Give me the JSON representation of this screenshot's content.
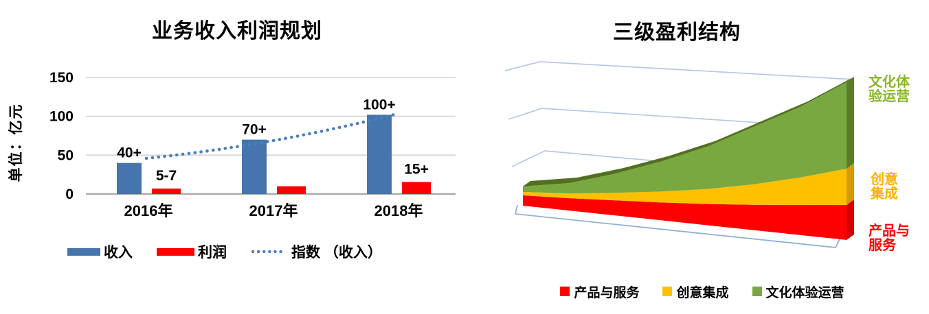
{
  "chart_data": [
    {
      "id": "revenue-profit-plan",
      "type": "bar",
      "title": "业务收入利润规划",
      "ylabel": "单位：亿元",
      "xlabel": "",
      "categories": [
        "2016年",
        "2017年",
        "2018年"
      ],
      "y_ticks": [
        0,
        50,
        100,
        150
      ],
      "ylim": [
        0,
        150
      ],
      "grid": true,
      "legend_position": "bottom",
      "series": [
        {
          "name": "收入",
          "type": "bar",
          "color": "#4674ad",
          "values": [
            40,
            70,
            102
          ],
          "data_labels": [
            "40+",
            "70+",
            "100+"
          ]
        },
        {
          "name": "利润",
          "type": "bar",
          "color": "#fe0000",
          "values": [
            7,
            10,
            15.5
          ],
          "data_labels": [
            "5-7",
            "",
            "15+"
          ]
        },
        {
          "name": "指数 （收入）",
          "type": "trendline",
          "style": "dotted",
          "color": "#4a7ebb",
          "endpoint_values": [
            46,
            103
          ]
        }
      ]
    },
    {
      "id": "three-level-profit-structure",
      "type": "area",
      "subtype": "3d-stacked-area",
      "title": "三级盈利结构",
      "xlabel": "",
      "ylabel": "",
      "grid": true,
      "legend_position": "bottom",
      "value_scale": "relative (no axis labels shown)",
      "series": [
        {
          "name": "产品与服务",
          "color": "#fe0000",
          "side_color": "#d40000",
          "values": [
            15,
            18,
            22,
            26,
            31,
            37,
            44,
            51
          ]
        },
        {
          "name": "创意集成",
          "color": "#ffc000",
          "side_color": "#d59a00",
          "values": [
            5,
            7,
            11,
            16,
            22,
            30,
            40,
            53
          ]
        },
        {
          "name": "文化体验运营",
          "color": "#78a83f",
          "side_color": "#5a7d26",
          "ridge_color": "#52701f",
          "values": [
            8,
            15,
            28,
            44,
            62,
            84,
            103,
            126
          ]
        }
      ],
      "annotations": [
        {
          "text": "文化体\n验运营",
          "color": "#8ab629"
        },
        {
          "text": "创意\n集成",
          "color": "#ffb000"
        },
        {
          "text": "产品与\n服务",
          "color": "#fe0000"
        }
      ]
    }
  ],
  "style": {
    "gridline_color_left": "#d8d8d8",
    "axis_line_color_left": "#ababab",
    "gridline_color_right": "#b3c9e6",
    "floor_line_color_right": "#8fb0d8",
    "background": "#ffffff"
  }
}
